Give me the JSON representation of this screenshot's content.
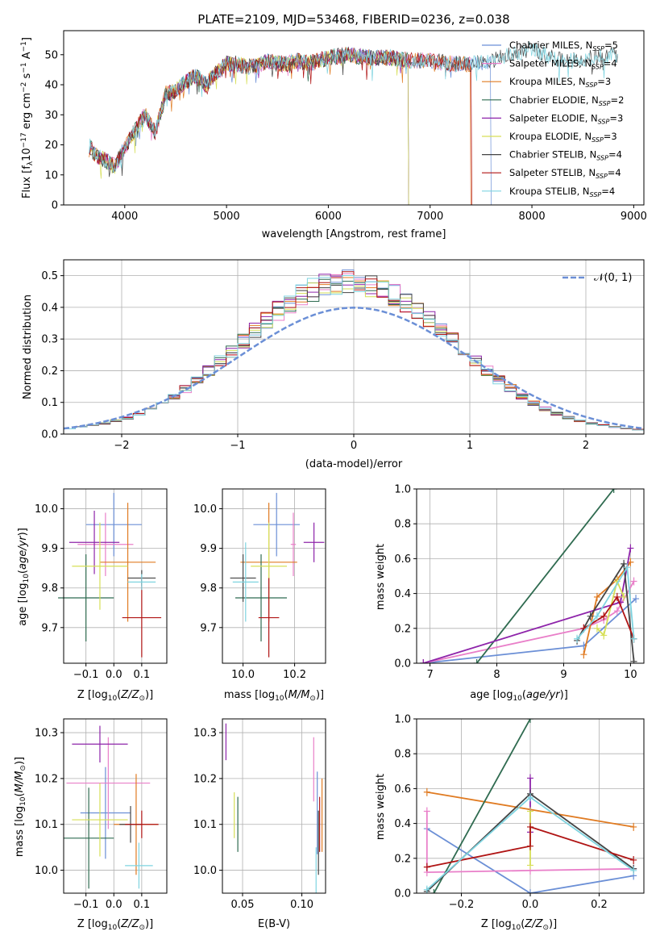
{
  "colors": {
    "chabrier_miles": "#6b8fd6",
    "salpeter_miles": "#e97fc9",
    "kroupa_miles": "#e07b22",
    "chabrier_elodie": "#2f6b50",
    "salpeter_elodie": "#8e24aa",
    "kroupa_elodie": "#d6df57",
    "chabrier_stelib": "#444444",
    "salpeter_stelib": "#b01414",
    "kroupa_stelib": "#7fd4e0",
    "gaussian": "#6b8fd6",
    "grid": "#b0b0b0"
  },
  "chart_data": [
    {
      "type": "line",
      "title": "PLATE=2109, MJD=53468, FIBERID=0236, z=0.038",
      "xlabel": "wavelength [Angstrom, rest frame]",
      "ylabel": "Flux [f_λ 10^-17 erg cm^-2 s^-1 A^-1]",
      "xlim": [
        3400,
        9100
      ],
      "ylim": [
        0,
        58
      ],
      "x_ticks": [
        "4000",
        "5000",
        "6000",
        "7000",
        "8000",
        "9000"
      ],
      "y_ticks": [
        "0",
        "10",
        "20",
        "30",
        "40",
        "50"
      ],
      "grid": false,
      "legend_position": "right",
      "spectrum_envelope": {
        "x": [
          3650,
          3700,
          3800,
          3900,
          4000,
          4100,
          4200,
          4300,
          4400,
          4500,
          4600,
          4700,
          4800,
          4900,
          5000,
          5100,
          5200,
          5300,
          5400,
          5500,
          5600,
          5700,
          5800,
          5900,
          6000,
          6200,
          6400,
          6600,
          6800,
          7000,
          7200,
          7400,
          7600,
          7800,
          8000,
          8200,
          8400,
          8600,
          8800
        ],
        "y": [
          20,
          17,
          15,
          13,
          19,
          25,
          30,
          24,
          37,
          38,
          41,
          43,
          40,
          44,
          47,
          47,
          46,
          46,
          48,
          47,
          47,
          48,
          47,
          48,
          49,
          50,
          49,
          49,
          48,
          48,
          47,
          47,
          48,
          50,
          52,
          49,
          48,
          49,
          50
        ]
      },
      "series": [
        {
          "name": "Chabrier MILES, N_SSP=5",
          "end_x": 7600
        },
        {
          "name": "Salpeter MILES, N_SSP=4",
          "end_x": 7400
        },
        {
          "name": "Kroupa MILES, N_SSP=3",
          "end_x": 7400
        },
        {
          "name": "Chabrier ELODIE, N_SSP=2",
          "end_x": 6790
        },
        {
          "name": "Salpeter ELODIE, N_SSP=3",
          "end_x": 6790
        },
        {
          "name": "Kroupa ELODIE, N_SSP=3",
          "end_x": 6790
        },
        {
          "name": "Chabrier STELIB, N_SSP=4",
          "end_x": 8850
        },
        {
          "name": "Salpeter STELIB, N_SSP=4",
          "end_x": 7410
        },
        {
          "name": "Kroupa STELIB, N_SSP=4",
          "end_x": 8850
        }
      ]
    },
    {
      "type": "line",
      "xlabel": "(data-model)/error",
      "ylabel": "Normed distribution",
      "xlim": [
        -2.5,
        2.5
      ],
      "ylim": [
        0,
        0.55
      ],
      "x_ticks": [
        "−2",
        "−1",
        "0",
        "1",
        "2"
      ],
      "y_ticks": [
        "0.0",
        "0.1",
        "0.2",
        "0.3",
        "0.4",
        "0.5"
      ],
      "grid": true,
      "legend": "𝒩(0, 1)",
      "legend_position": "top-right",
      "bin_edges": [
        -2.5,
        -2.4,
        -2.3,
        -2.2,
        -2.1,
        -2.0,
        -1.9,
        -1.8,
        -1.7,
        -1.6,
        -1.5,
        -1.4,
        -1.3,
        -1.2,
        -1.1,
        -1.0,
        -0.9,
        -0.8,
        -0.7,
        -0.6,
        -0.5,
        -0.4,
        -0.3,
        -0.2,
        -0.1,
        0.0,
        0.1,
        0.2,
        0.3,
        0.4,
        0.5,
        0.6,
        0.7,
        0.8,
        0.9,
        1.0,
        1.1,
        1.2,
        1.3,
        1.4,
        1.5,
        1.6,
        1.7,
        1.8,
        1.9,
        2.0,
        2.1,
        2.2,
        2.3,
        2.4,
        2.5
      ],
      "histogram_mean": [
        0.018,
        0.022,
        0.028,
        0.034,
        0.042,
        0.05,
        0.062,
        0.078,
        0.095,
        0.118,
        0.142,
        0.17,
        0.2,
        0.232,
        0.262,
        0.295,
        0.325,
        0.36,
        0.39,
        0.415,
        0.44,
        0.455,
        0.468,
        0.478,
        0.485,
        0.48,
        0.47,
        0.455,
        0.44,
        0.415,
        0.39,
        0.362,
        0.33,
        0.298,
        0.265,
        0.232,
        0.2,
        0.172,
        0.145,
        0.12,
        0.098,
        0.08,
        0.064,
        0.052,
        0.042,
        0.034,
        0.028,
        0.022,
        0.018,
        0.014
      ]
    },
    {
      "type": "scatter",
      "xlabel": "Z [log10(Z/Z⊙)]",
      "ylabel": "age [log10(age/yr)]",
      "xlim": [
        -0.18,
        0.19
      ],
      "ylim": [
        9.61,
        10.05
      ],
      "x_ticks": [
        "−0.1",
        "0.0",
        "0.1"
      ],
      "y_ticks": [
        "9.7",
        "9.8",
        "9.9",
        "10.0"
      ],
      "grid": true,
      "points": [
        {
          "x": 0.0,
          "xerr": 0.1,
          "y": 9.96,
          "yerr": 0.08
        },
        {
          "x": -0.03,
          "xerr": 0.1,
          "y": 9.91,
          "yerr": 0.08
        },
        {
          "x": 0.05,
          "xerr": 0.1,
          "y": 9.865,
          "yerr": 0.15
        },
        {
          "x": -0.1,
          "xerr": 0.1,
          "y": 9.775,
          "yerr": 0.11
        },
        {
          "x": -0.07,
          "xerr": 0.09,
          "y": 9.915,
          "yerr": 0.08
        },
        {
          "x": -0.05,
          "xerr": 0.1,
          "y": 9.855,
          "yerr": 0.11
        },
        {
          "x": 0.1,
          "xerr": 0.05,
          "y": 9.825,
          "yerr": 0.02
        },
        {
          "x": 0.1,
          "xerr": 0.07,
          "y": 9.725,
          "yerr": 0.1
        },
        {
          "x": 0.1,
          "xerr": 0.05,
          "y": 9.815,
          "yerr": 0.02
        }
      ]
    },
    {
      "type": "scatter",
      "xlabel": "mass [log10(M/M⊙)]",
      "ylabel": "",
      "xlim": [
        9.92,
        10.32
      ],
      "ylim": [
        9.61,
        10.05
      ],
      "x_ticks": [
        "10.0",
        "10.2"
      ],
      "y_ticks": [
        "9.7",
        "9.8",
        "9.9",
        "10.0"
      ],
      "grid": true,
      "points": [
        {
          "x": 10.13,
          "xerr": 0.09,
          "y": 9.96,
          "yerr": 0.08
        },
        {
          "x": 10.195,
          "xerr": 0.01,
          "y": 9.91,
          "yerr": 0.08
        },
        {
          "x": 10.1,
          "xerr": 0.11,
          "y": 9.865,
          "yerr": 0.15
        },
        {
          "x": 10.07,
          "xerr": 0.1,
          "y": 9.775,
          "yerr": 0.11
        },
        {
          "x": 10.275,
          "xerr": 0.04,
          "y": 9.915,
          "yerr": 0.05
        },
        {
          "x": 10.1,
          "xerr": 0.07,
          "y": 9.855,
          "yerr": 0.11
        },
        {
          "x": 10.0,
          "xerr": 0.05,
          "y": 9.825,
          "yerr": 0.06
        },
        {
          "x": 10.1,
          "xerr": 0.04,
          "y": 9.725,
          "yerr": 0.1
        },
        {
          "x": 10.01,
          "xerr": 0.05,
          "y": 9.815,
          "yerr": 0.1
        }
      ]
    },
    {
      "type": "line",
      "xlabel": "age [log10(age/yr)]",
      "ylabel": "mass weight",
      "xlim": [
        6.8,
        10.2
      ],
      "ylim": [
        0,
        1
      ],
      "x_ticks": [
        "7",
        "8",
        "9",
        "10"
      ],
      "y_ticks": [
        "0.0",
        "0.2",
        "0.4",
        "0.6",
        "0.8",
        "1.0"
      ],
      "grid": true,
      "series": [
        {
          "x": [
            6.9,
            9.3,
            10.08
          ],
          "y": [
            0.0,
            0.1,
            0.37
          ]
        },
        {
          "x": [
            6.9,
            9.3,
            9.6,
            9.8,
            10.05
          ],
          "y": [
            0.0,
            0.2,
            0.25,
            0.3,
            0.47
          ]
        },
        {
          "x": [
            9.3,
            9.5,
            9.8,
            10.0
          ],
          "y": [
            0.05,
            0.38,
            0.48,
            0.58
          ]
        },
        {
          "x": [
            7.7,
            9.75
          ],
          "y": [
            0.0,
            1.0
          ]
        },
        {
          "x": [
            6.9,
            9.85,
            10.0
          ],
          "y": [
            0.0,
            0.35,
            0.66
          ]
        },
        {
          "x": [
            9.5,
            9.6,
            9.8,
            9.9
          ],
          "y": [
            0.2,
            0.16,
            0.47,
            0.38
          ]
        },
        {
          "x": [
            9.2,
            9.4,
            9.9,
            10.05
          ],
          "y": [
            0.13,
            0.27,
            0.57,
            0.01
          ]
        },
        {
          "x": [
            9.3,
            9.6,
            9.8,
            10.05
          ],
          "y": [
            0.2,
            0.27,
            0.38,
            0.14
          ]
        },
        {
          "x": [
            9.2,
            9.5,
            9.95,
            10.05
          ],
          "y": [
            0.14,
            0.27,
            0.55,
            0.14
          ]
        }
      ]
    },
    {
      "type": "scatter",
      "xlabel": "Z [log10(Z/Z⊙)]",
      "ylabel": "mass [log10(M/M⊙)]",
      "xlim": [
        -0.18,
        0.19
      ],
      "ylim": [
        9.95,
        10.33
      ],
      "x_ticks": [
        "−0.1",
        "0.0",
        "0.1"
      ],
      "y_ticks": [
        "10.0",
        "10.1",
        "10.2",
        "10.3"
      ],
      "grid": true,
      "points": [
        {
          "x": -0.03,
          "xerr": 0.09,
          "y": 10.125,
          "yerr": 0.1
        },
        {
          "x": -0.02,
          "xerr": 0.15,
          "y": 10.19,
          "yerr": 0.1
        },
        {
          "x": 0.08,
          "xerr": 0.08,
          "y": 10.1,
          "yerr": 0.11
        },
        {
          "x": -0.09,
          "xerr": 0.09,
          "y": 10.07,
          "yerr": 0.11
        },
        {
          "x": -0.05,
          "xerr": 0.1,
          "y": 10.275,
          "yerr": 0.04
        },
        {
          "x": -0.05,
          "xerr": 0.1,
          "y": 10.11,
          "yerr": 0.08
        },
        {
          "x": 0.06,
          "xerr": 0.04,
          "y": 10.1,
          "yerr": 0.04
        },
        {
          "x": 0.1,
          "xerr": 0.06,
          "y": 10.1,
          "yerr": 0.03
        },
        {
          "x": 0.09,
          "xerr": 0.05,
          "y": 10.01,
          "yerr": 0.05
        }
      ]
    },
    {
      "type": "scatter",
      "xlabel": "E(B-V)",
      "ylabel": "",
      "xlim": [
        0.033,
        0.12
      ],
      "ylim": [
        9.95,
        10.33
      ],
      "x_ticks": [
        "0.05",
        "0.10"
      ],
      "y_ticks": [
        "10.0",
        "10.1",
        "10.2",
        "10.3"
      ],
      "grid": true,
      "points": [
        {
          "x": 0.113,
          "y": 10.125,
          "yerr": 0.09
        },
        {
          "x": 0.11,
          "y": 10.22,
          "yerr": 0.07
        },
        {
          "x": 0.117,
          "y": 10.12,
          "yerr": 0.08
        },
        {
          "x": 0.046,
          "y": 10.1,
          "yerr": 0.06
        },
        {
          "x": 0.036,
          "y": 10.28,
          "yerr": 0.04
        },
        {
          "x": 0.043,
          "y": 10.12,
          "yerr": 0.05
        },
        {
          "x": 0.114,
          "y": 10.06,
          "yerr": 0.07
        },
        {
          "x": 0.115,
          "y": 10.1,
          "yerr": 0.06
        },
        {
          "x": 0.112,
          "y": 10.0,
          "yerr": 0.05
        }
      ]
    },
    {
      "type": "line",
      "xlabel": "Z [log10(Z/Z⊙)]",
      "ylabel": "mass weight",
      "xlim": [
        -0.33,
        0.33
      ],
      "ylim": [
        0,
        1
      ],
      "x_ticks": [
        "−0.2",
        "0.0",
        "0.2"
      ],
      "y_ticks": [
        "0.0",
        "0.2",
        "0.4",
        "0.6",
        "0.8",
        "1.0"
      ],
      "grid": true,
      "series": [
        {
          "x": [
            -0.3,
            0.0,
            0.3
          ],
          "y": [
            0.37,
            0.0,
            0.1
          ]
        },
        {
          "x": [
            -0.3,
            -0.3,
            0.0,
            0.3
          ],
          "y": [
            0.47,
            0.12,
            0.13,
            0.14
          ]
        },
        {
          "x": [
            -0.3,
            0.3
          ],
          "y": [
            0.58,
            0.38
          ]
        },
        {
          "x": [
            -0.28,
            0.0
          ],
          "y": [
            0.0,
            1.0
          ]
        },
        {
          "x": [
            0.0,
            0.0
          ],
          "y": [
            0.66,
            0.35
          ]
        },
        {
          "x": [
            0.0,
            0.0
          ],
          "y": [
            0.16,
            0.47
          ]
        },
        {
          "x": [
            -0.3,
            0.0,
            0.3
          ],
          "y": [
            0.01,
            0.57,
            0.14
          ]
        },
        {
          "x": [
            -0.3,
            0.0,
            0.0,
            0.3
          ],
          "y": [
            0.15,
            0.27,
            0.38,
            0.19
          ]
        },
        {
          "x": [
            -0.3,
            0.0,
            0.3
          ],
          "y": [
            0.02,
            0.55,
            0.13
          ]
        }
      ]
    }
  ]
}
